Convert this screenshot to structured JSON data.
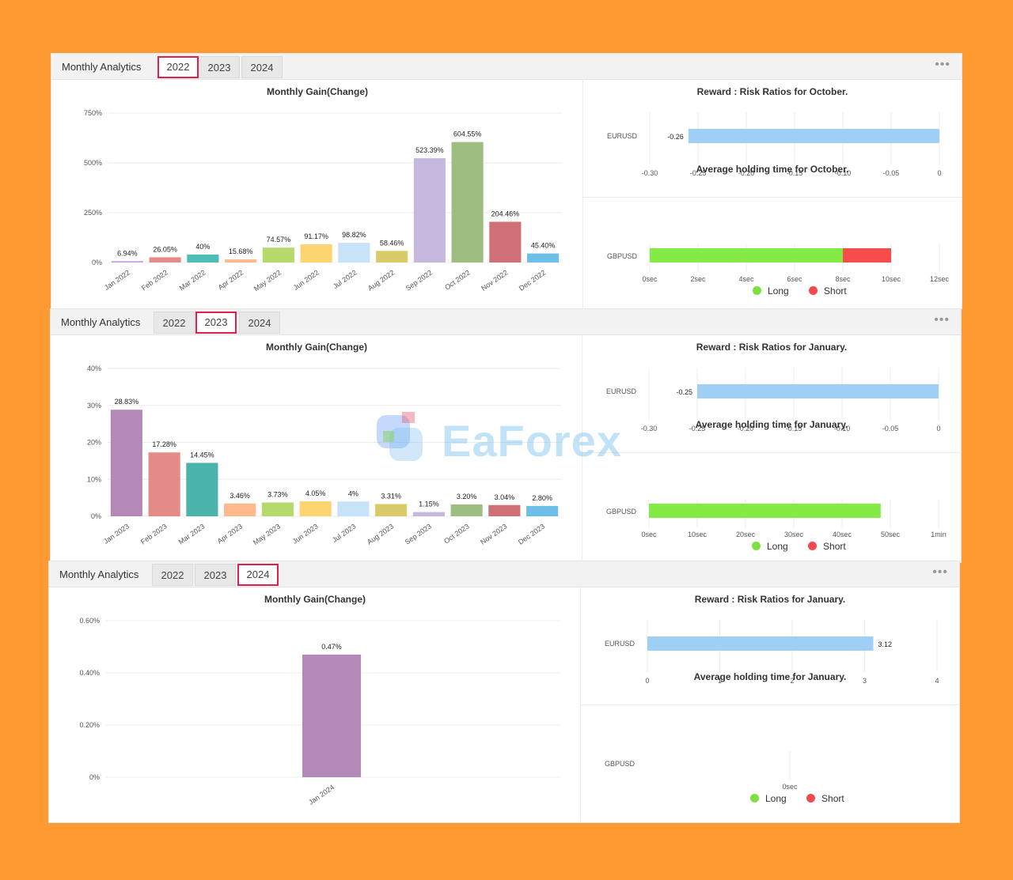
{
  "panels": [
    {
      "title": "Monthly Analytics",
      "tabs": [
        "2022",
        "2023",
        "2024"
      ],
      "active_tab": 0,
      "menu_label": "•••",
      "gain_title": "Monthly Gain(Change)",
      "rr_title": "Reward : Risk Ratios for October.",
      "hold_title": "Average holding time for October.",
      "legend": {
        "long": "Long",
        "short": "Short"
      },
      "gain_chart": {
        "type": "bar",
        "categories": [
          "Jan 2022",
          "Feb 2022",
          "Mar 2022",
          "Apr 2022",
          "May 2022",
          "Jun 2022",
          "Jul 2022",
          "Aug 2022",
          "Sep 2022",
          "Oct 2022",
          "Nov 2022",
          "Dec 2022"
        ],
        "values": [
          6.94,
          26.05,
          40,
          15.68,
          74.57,
          91.17,
          98.82,
          58.46,
          523.39,
          604.55,
          204.46,
          45.4
        ],
        "labels": [
          "6.94%",
          "26.05%",
          "40%",
          "15.68%",
          "74.57%",
          "91.17%",
          "98.82%",
          "58.46%",
          "523.39%",
          "604.55%",
          "204.46%",
          "45.40%"
        ],
        "yticks": [
          "0%",
          "250%",
          "500%",
          "750%"
        ],
        "ylim": [
          0,
          750
        ]
      },
      "rr_chart": {
        "type": "bar",
        "category": "EURUSD",
        "value": -0.26,
        "value_label": "-0.26",
        "xticks": [
          "-0.30",
          "-0.25",
          "-0.20",
          "-0.15",
          "-0.10",
          "-0.05",
          "0"
        ],
        "xlim": [
          -0.3,
          0
        ]
      },
      "hold_chart": {
        "type": "bar",
        "category": "GBPUSD",
        "long": 8,
        "short": 2,
        "xticks": [
          "0sec",
          "2sec",
          "4sec",
          "6sec",
          "8sec",
          "10sec",
          "12sec"
        ],
        "xlim": [
          0,
          12
        ]
      }
    },
    {
      "title": "Monthly Analytics",
      "tabs": [
        "2022",
        "2023",
        "2024"
      ],
      "active_tab": 1,
      "menu_label": "•••",
      "gain_title": "Monthly Gain(Change)",
      "rr_title": "Reward : Risk Ratios for January.",
      "hold_title": "Average holding time for January.",
      "legend": {
        "long": "Long",
        "short": "Short"
      },
      "gain_chart": {
        "type": "bar",
        "categories": [
          "Jan 2023",
          "Feb 2023",
          "Mar 2023",
          "Apr 2023",
          "May 2023",
          "Jun 2023",
          "Jul 2023",
          "Aug 2023",
          "Sep 2023",
          "Oct 2023",
          "Nov 2023",
          "Dec 2023"
        ],
        "values": [
          28.83,
          17.28,
          14.45,
          3.46,
          3.73,
          4.05,
          4,
          3.31,
          1.15,
          3.2,
          3.04,
          2.8
        ],
        "labels": [
          "28.83%",
          "17.28%",
          "14.45%",
          "3.46%",
          "3.73%",
          "4.05%",
          "4%",
          "3.31%",
          "1.15%",
          "3.20%",
          "3.04%",
          "2.80%"
        ],
        "yticks": [
          "0%",
          "10%",
          "20%",
          "30%",
          "40%"
        ],
        "ylim": [
          0,
          40
        ]
      },
      "rr_chart": {
        "type": "bar",
        "category": "EURUSD",
        "value": -0.25,
        "value_label": "-0.25",
        "xticks": [
          "-0.30",
          "-0.25",
          "-0.20",
          "-0.15",
          "-0.10",
          "-0.05",
          "0"
        ],
        "xlim": [
          -0.3,
          0
        ]
      },
      "hold_chart": {
        "type": "bar",
        "category": "GBPUSD",
        "long": 48,
        "short": 0,
        "xticks": [
          "0sec",
          "10sec",
          "20sec",
          "30sec",
          "40sec",
          "50sec",
          "1min"
        ],
        "xlim": [
          0,
          60
        ]
      }
    },
    {
      "title": "Monthly Analytics",
      "tabs": [
        "2022",
        "2023",
        "2024"
      ],
      "active_tab": 2,
      "menu_label": "•••",
      "gain_title": "Monthly Gain(Change)",
      "rr_title": "Reward : Risk Ratios for January.",
      "hold_title": "Average holding time for January.",
      "legend": {
        "long": "Long",
        "short": "Short"
      },
      "gain_chart": {
        "type": "bar",
        "categories": [
          "Jan 2024"
        ],
        "values": [
          0.47
        ],
        "labels": [
          "0.47%"
        ],
        "yticks": [
          "0%",
          "0.20%",
          "0.40%",
          "0.60%"
        ],
        "ylim": [
          0,
          0.6
        ]
      },
      "rr_chart": {
        "type": "bar",
        "category": "EURUSD",
        "value": 3.12,
        "value_label": "3.12",
        "xticks": [
          "0",
          "1",
          "2",
          "3",
          "4"
        ],
        "xlim": [
          0,
          4
        ]
      },
      "hold_chart": {
        "type": "bar",
        "category": "GBPUSD",
        "long": 0,
        "short": 0,
        "xticks": [
          "0sec"
        ],
        "xlim": [
          0,
          1
        ]
      }
    }
  ],
  "watermark": "EaForex",
  "colors": {
    "bars_2022": [
      "#c9a0dc",
      "#e58a8a",
      "#4dbdb5",
      "#ffb98a",
      "#b5d96a",
      "#fcd470",
      "#c7e3f7",
      "#d9cb6a",
      "#c7b8dd",
      "#9dbd81",
      "#cf6f76",
      "#6cbfe6"
    ],
    "bars_2023": [
      "#b389b8",
      "#e58a85",
      "#4ab3ac",
      "#ffb98a",
      "#b5d96a",
      "#fcd470",
      "#c7e3f7",
      "#d9cb6a",
      "#c7b8dd",
      "#9dbd81",
      "#cf6f76",
      "#6cbfe6"
    ],
    "bar_2024": "#b389b8",
    "rr_bar": "#9fcff5",
    "long": "#84eb46",
    "short": "#f74c4c",
    "legend_long": "#7ee03f",
    "legend_short": "#f44a4a",
    "grid": "#ececec"
  }
}
